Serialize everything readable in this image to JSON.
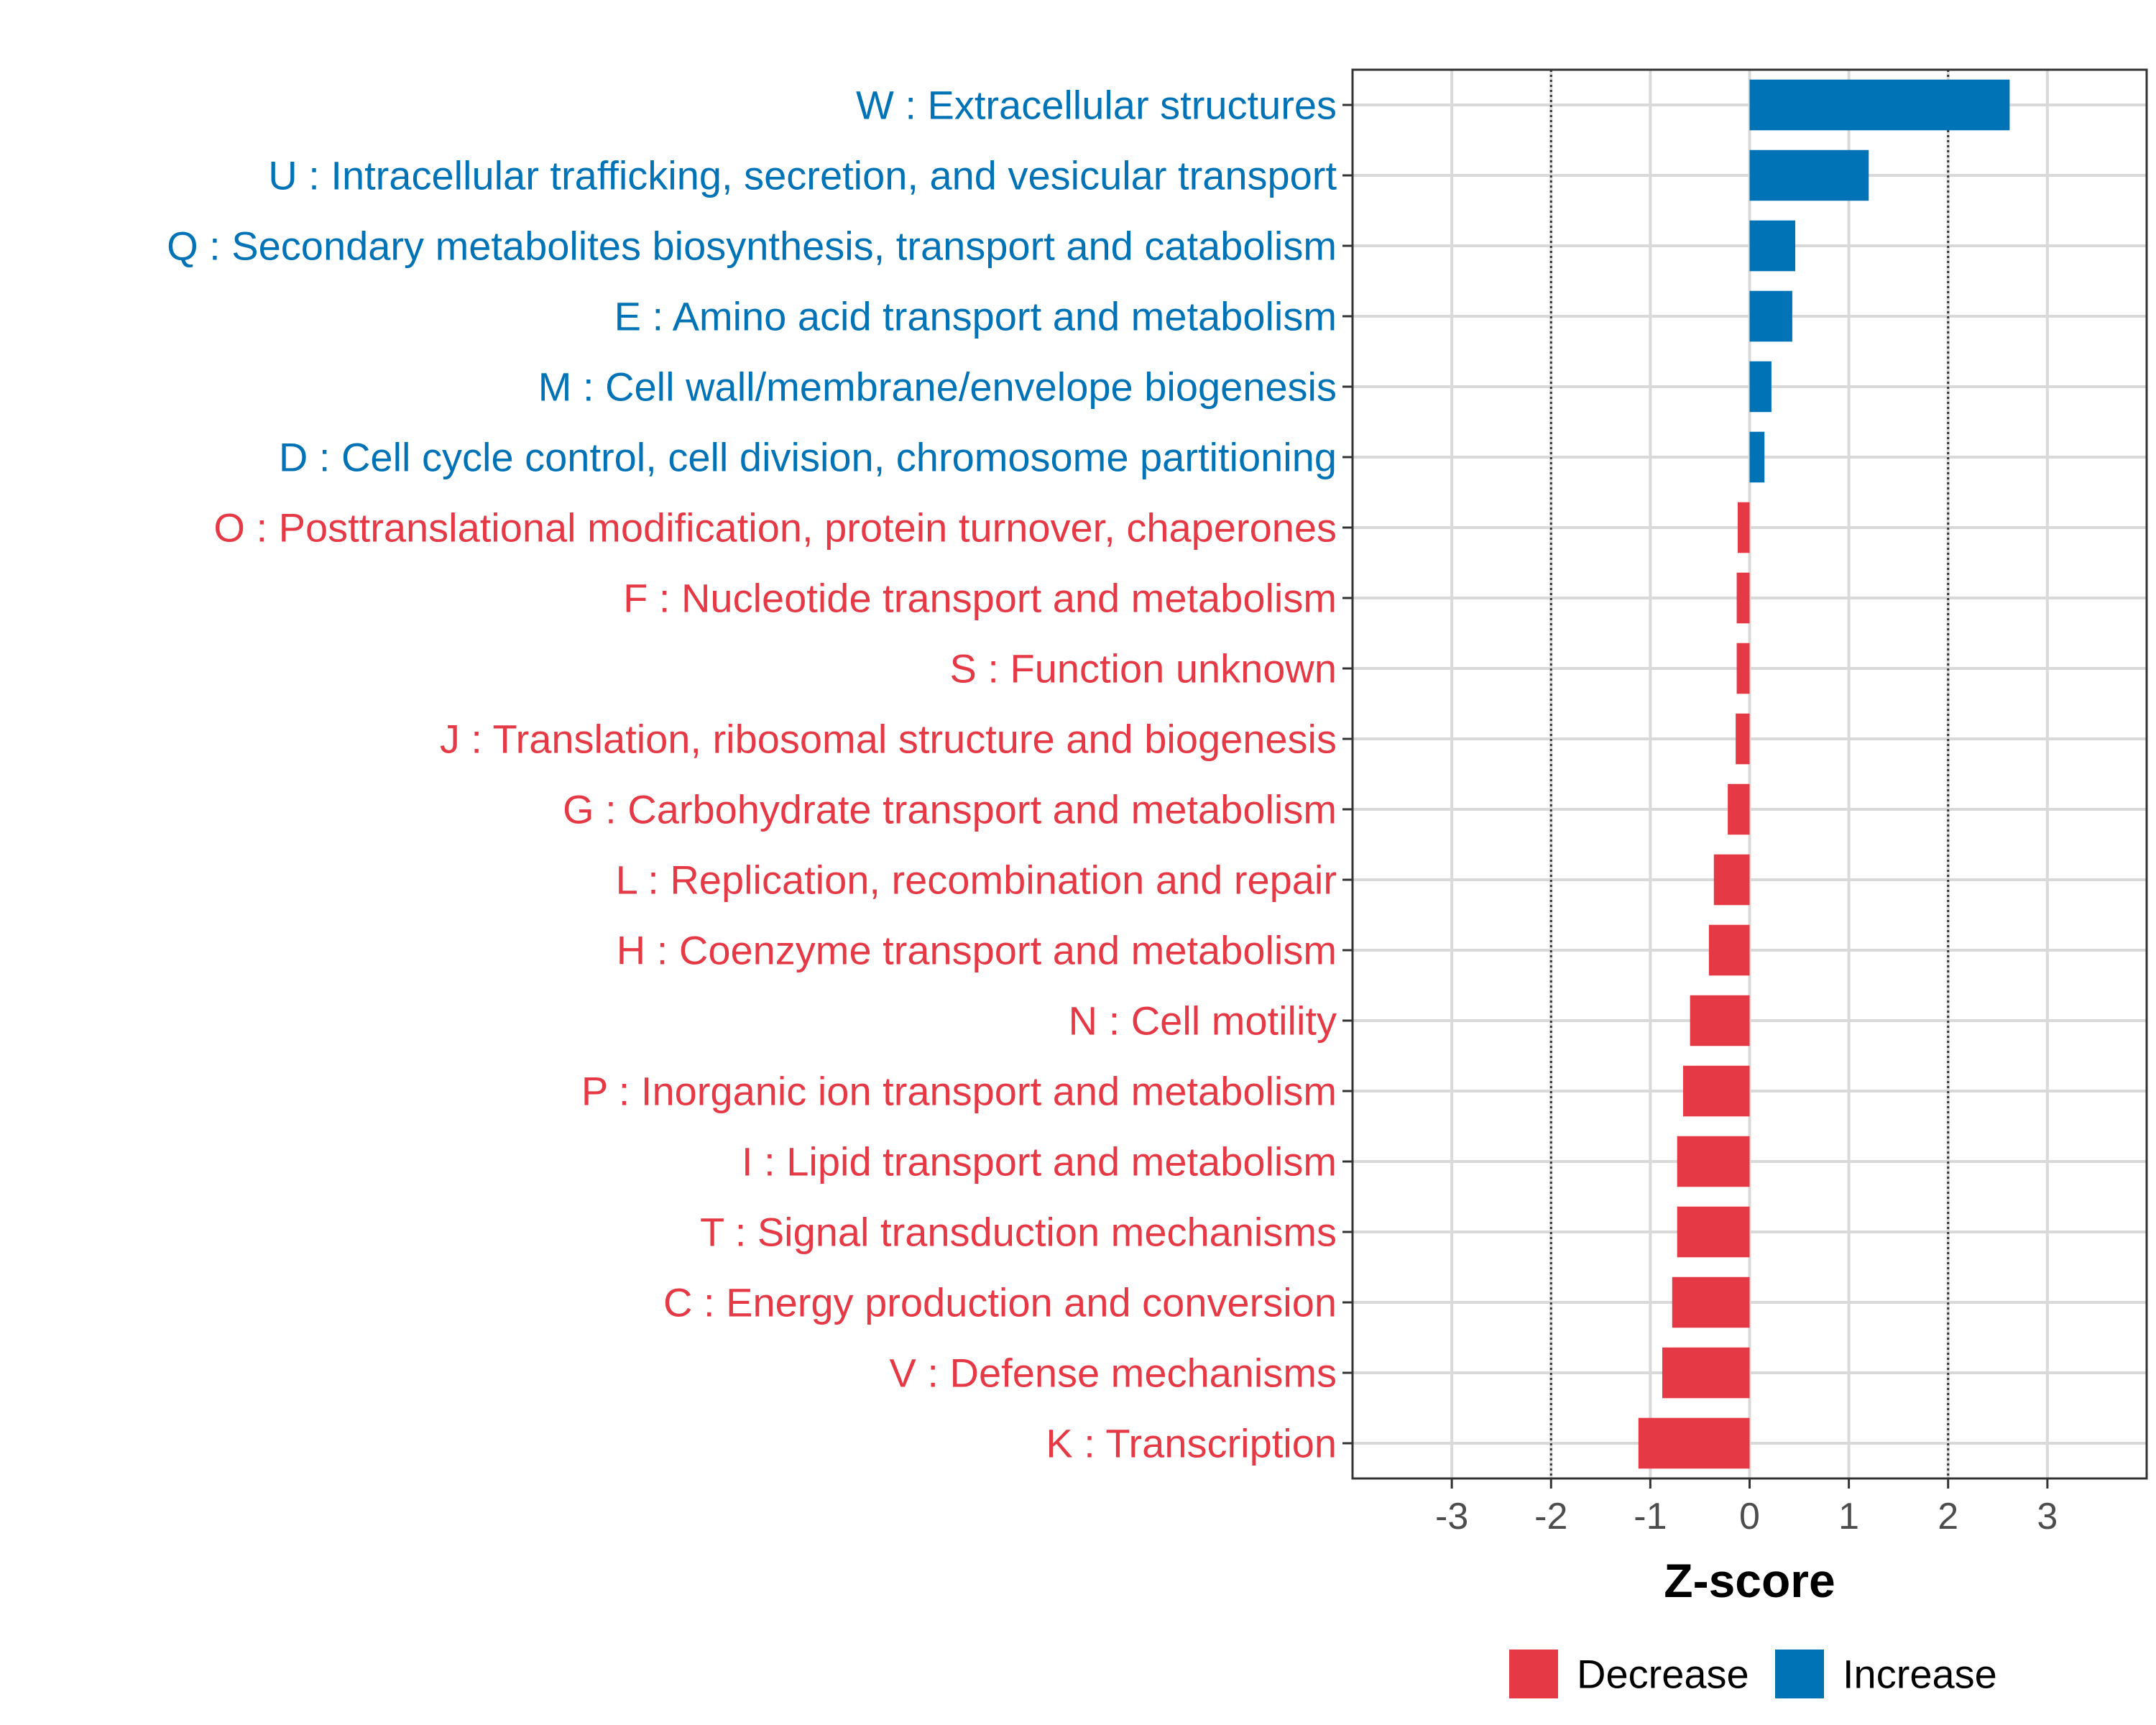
{
  "chart_data": {
    "type": "bar",
    "orientation": "horizontal",
    "title": "",
    "xlabel": "Z-score",
    "ylabel": "",
    "xlim": [
      -4,
      4
    ],
    "xticks": [
      -3,
      -2,
      -1,
      0,
      1,
      2,
      3
    ],
    "xtick_labels": [
      "-3",
      "-2",
      "-1",
      "0",
      "1",
      "2",
      "3"
    ],
    "reference_lines": [
      -2,
      2
    ],
    "grid": true,
    "colors": {
      "Decrease": "#e63946",
      "Increase": "#0073b7"
    },
    "categories": [
      "W : Extracellular structures",
      "U : Intracellular trafficking, secretion, and vesicular transport",
      "Q : Secondary metabolites biosynthesis, transport and catabolism",
      "E : Amino acid transport and metabolism",
      "M : Cell wall/membrane/envelope biogenesis",
      "D : Cell cycle control, cell division, chromosome partitioning",
      "O : Posttranslational modification, protein turnover, chaperones",
      "F : Nucleotide transport and metabolism",
      "S : Function unknown",
      "J : Translation, ribosomal structure and biogenesis",
      "G : Carbohydrate transport and metabolism",
      "L : Replication, recombination and repair",
      "H : Coenzyme transport and metabolism",
      "N : Cell motility",
      "P : Inorganic ion transport and metabolism",
      "I : Lipid transport and metabolism",
      "T : Signal transduction mechanisms",
      "C : Energy production and conversion",
      "V : Defense mechanisms",
      "K : Transcription"
    ],
    "values": [
      2.62,
      1.2,
      0.46,
      0.43,
      0.22,
      0.15,
      -0.12,
      -0.13,
      -0.13,
      -0.14,
      -0.22,
      -0.36,
      -0.41,
      -0.6,
      -0.67,
      -0.73,
      -0.73,
      -0.78,
      -0.88,
      -1.12
    ],
    "groups": [
      "Increase",
      "Increase",
      "Increase",
      "Increase",
      "Increase",
      "Increase",
      "Decrease",
      "Decrease",
      "Decrease",
      "Decrease",
      "Decrease",
      "Decrease",
      "Decrease",
      "Decrease",
      "Decrease",
      "Decrease",
      "Decrease",
      "Decrease",
      "Decrease",
      "Decrease"
    ],
    "legend": {
      "position": "bottom",
      "entries": [
        {
          "label": "Decrease",
          "color": "#e63946"
        },
        {
          "label": "Increase",
          "color": "#0073b7"
        }
      ]
    }
  }
}
